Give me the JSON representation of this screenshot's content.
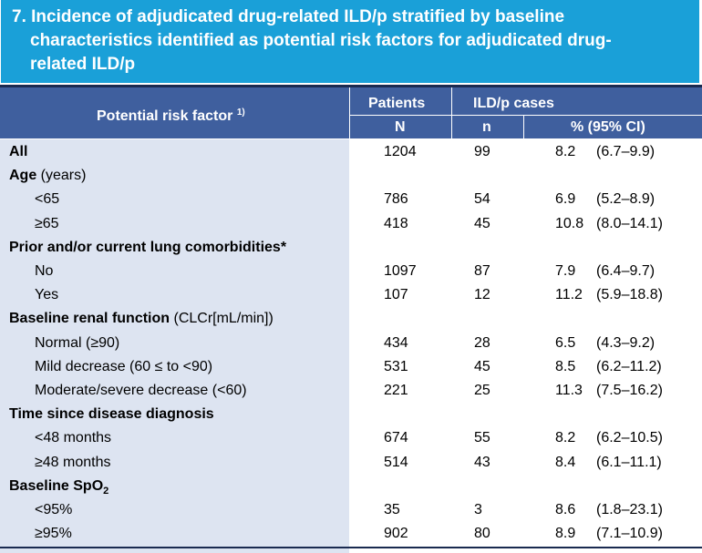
{
  "title_lines": [
    "7. Incidence of adjudicated drug-related ILD/p stratified by baseline",
    "characteristics identified as potential risk factors for adjudicated drug-",
    "related ILD/p"
  ],
  "header": {
    "risk_factor": "Potential risk factor",
    "risk_factor_footnote": "1)",
    "patients": "Patients",
    "patients_sub": "N",
    "cases": "ILD/p cases",
    "cases_n": "n",
    "cases_pct": "% (95% CI)"
  },
  "rows": [
    {
      "label_bold": "All",
      "label_rest": "",
      "indent": false,
      "N": "1204",
      "n": "99",
      "pct": "8.2",
      "ci": "(6.7–9.9)"
    },
    {
      "label_bold": "Age",
      "label_rest": " (years)",
      "indent": false,
      "N": "",
      "n": "",
      "pct": "",
      "ci": ""
    },
    {
      "label_bold": "",
      "label_rest": "<65",
      "indent": true,
      "N": "786",
      "n": "54",
      "pct": "6.9",
      "ci": "(5.2–8.9)"
    },
    {
      "label_bold": "",
      "label_rest": "≥65",
      "indent": true,
      "N": "418",
      "n": "45",
      "pct": "10.8",
      "ci": "(8.0–14.1)"
    },
    {
      "label_bold": "Prior and/or current lung comorbidities*",
      "label_rest": "",
      "indent": false,
      "N": "",
      "n": "",
      "pct": "",
      "ci": ""
    },
    {
      "label_bold": "",
      "label_rest": "No",
      "indent": true,
      "N": "1097",
      "n": "87",
      "pct": "7.9",
      "ci": "(6.4–9.7)"
    },
    {
      "label_bold": "",
      "label_rest": "Yes",
      "indent": true,
      "N": "107",
      "n": "12",
      "pct": "11.2",
      "ci": "(5.9–18.8)"
    },
    {
      "label_bold": "Baseline renal function",
      "label_rest": " (CLCr[mL/min])",
      "indent": false,
      "N": "",
      "n": "",
      "pct": "",
      "ci": ""
    },
    {
      "label_bold": "",
      "label_rest": "Normal (≥90)",
      "indent": true,
      "N": "434",
      "n": "28",
      "pct": "6.5",
      "ci": "(4.3–9.2)"
    },
    {
      "label_bold": "",
      "label_rest": "Mild decrease (60 ≤ to <90)",
      "indent": true,
      "N": "531",
      "n": "45",
      "pct": "8.5",
      "ci": "(6.2–11.2)"
    },
    {
      "label_bold": "",
      "label_rest": "Moderate/severe decrease (<60)",
      "indent": true,
      "N": "221",
      "n": "25",
      "pct": "11.3",
      "ci": "(7.5–16.2)"
    },
    {
      "label_bold": "Time since disease diagnosis",
      "label_rest": "",
      "indent": false,
      "N": "",
      "n": "",
      "pct": "",
      "ci": ""
    },
    {
      "label_bold": "",
      "label_rest": "<48 months",
      "indent": true,
      "N": "674",
      "n": "55",
      "pct": "8.2",
      "ci": "(6.2–10.5)"
    },
    {
      "label_bold": "",
      "label_rest": "≥48 months",
      "indent": true,
      "N": "514",
      "n": "43",
      "pct": "8.4",
      "ci": "(6.1–11.1)"
    },
    {
      "label_bold": "Baseline SpO",
      "label_sub": "2",
      "label_rest": "",
      "indent": false,
      "N": "",
      "n": "",
      "pct": "",
      "ci": ""
    },
    {
      "label_bold": "",
      "label_rest": "<95%",
      "indent": true,
      "N": "35",
      "n": "3",
      "pct": "8.6",
      "ci": "(1.8–23.1)"
    },
    {
      "label_bold": "",
      "label_rest": "≥95%",
      "indent": true,
      "N": "902",
      "n": "80",
      "pct": "8.9",
      "ci": "(7.1–10.9)"
    }
  ]
}
